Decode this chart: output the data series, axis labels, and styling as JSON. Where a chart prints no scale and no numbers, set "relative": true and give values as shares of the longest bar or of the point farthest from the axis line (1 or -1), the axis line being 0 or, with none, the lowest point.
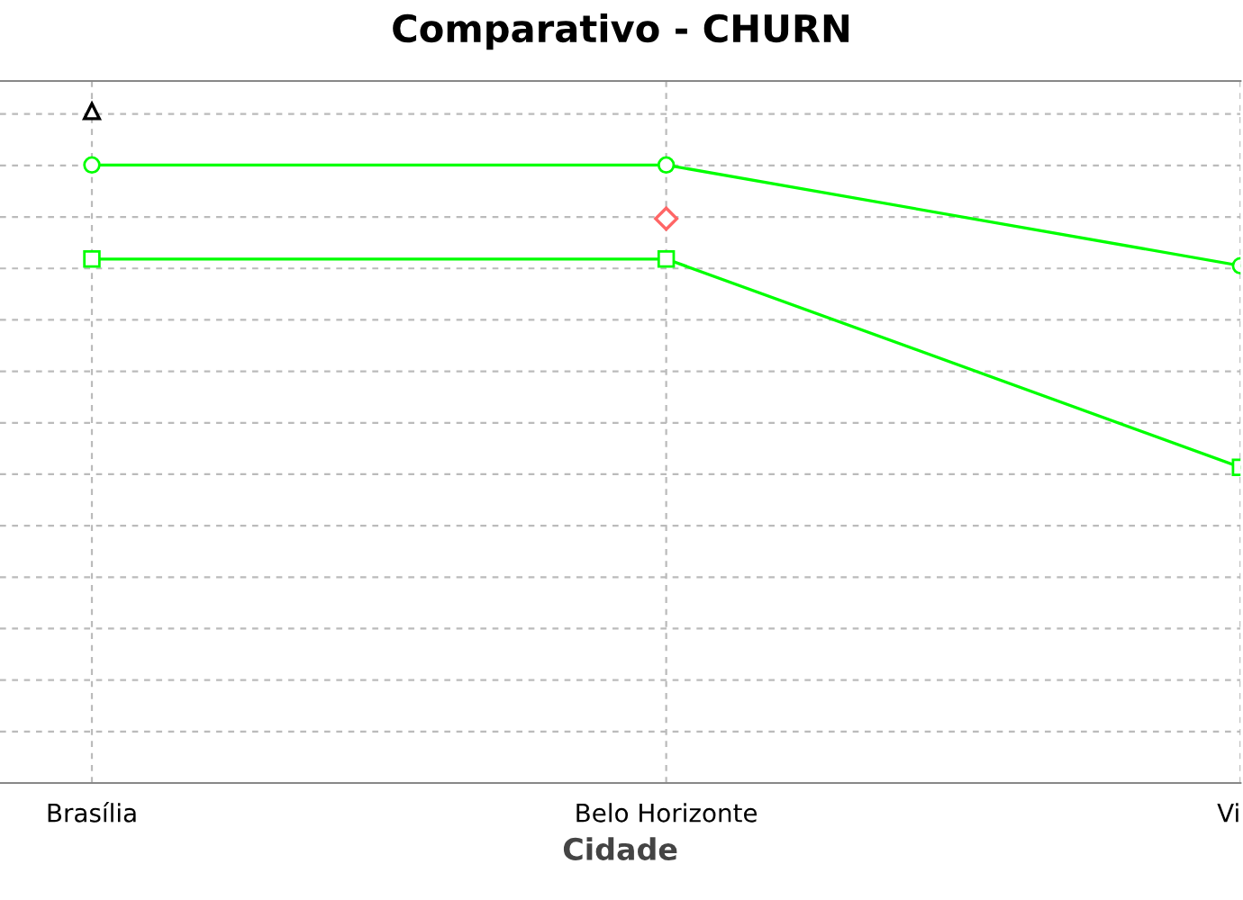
{
  "chart_data": {
    "type": "line",
    "title": "Comparativo - CHURN",
    "xlabel": "Cidade",
    "categories": [
      "Brasília",
      "Belo Horizonte",
      "Vi"
    ],
    "relative": true,
    "grid": true,
    "series": [
      {
        "color": "#00ff00",
        "marker": "circle",
        "values": [
          0.92,
          0.92,
          0.77
        ]
      },
      {
        "color": "#00ff00",
        "marker": "square",
        "values": [
          0.78,
          0.78,
          0.47
        ]
      },
      {
        "type": "scatter",
        "color": "#000000",
        "marker": "triangle",
        "values": [
          1.0,
          null,
          null
        ]
      },
      {
        "type": "scatter",
        "color": "#ff6666",
        "marker": "diamond",
        "values": [
          null,
          0.84,
          null
        ]
      }
    ]
  }
}
